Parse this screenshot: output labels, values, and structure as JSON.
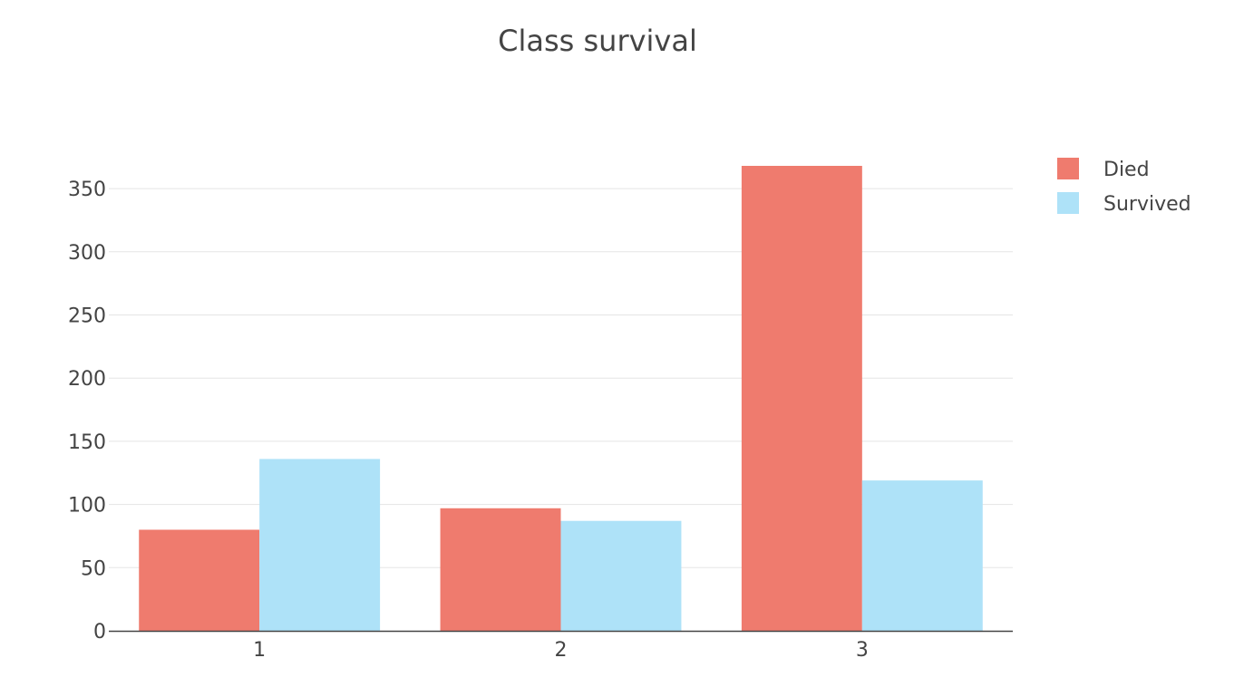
{
  "chart_data": {
    "type": "bar",
    "title": "Class survival",
    "xlabel": "",
    "ylabel": "",
    "categories": [
      "1",
      "2",
      "3"
    ],
    "series": [
      {
        "name": "Died",
        "values": [
          80,
          97,
          368
        ],
        "color": "#EF7B6E"
      },
      {
        "name": "Survived",
        "values": [
          136,
          87,
          119
        ],
        "color": "#AEE2F8"
      }
    ],
    "ylim": [
      0,
      370
    ],
    "y_ticks": [
      0,
      50,
      100,
      150,
      200,
      250,
      300,
      350
    ],
    "grid": true,
    "legend_position": "top-right",
    "colors": {
      "gridline": "#e5e5e5",
      "axis_line": "#444444",
      "text": "#444444"
    }
  }
}
